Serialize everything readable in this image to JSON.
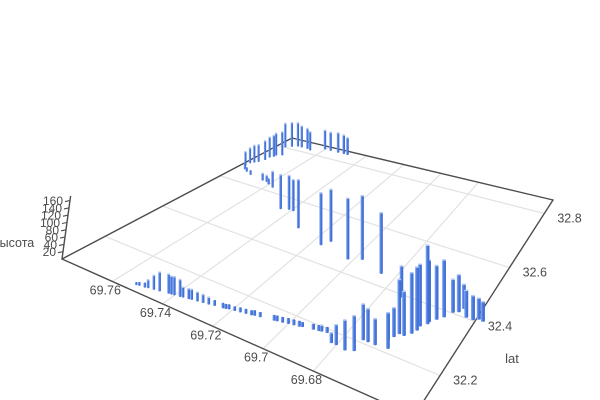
{
  "page": {
    "background": "#ffffff"
  },
  "chart_data": {
    "type": "bar",
    "subtype": "3d-vertical-bars",
    "title": "",
    "legend": "none",
    "grid": true,
    "axes": {
      "x": {
        "title": "",
        "tick_labels": [
          "69.76",
          "69.74",
          "69.72",
          "69.7",
          "69.68"
        ],
        "tick_values": [
          69.76,
          69.74,
          69.72,
          69.7,
          69.68
        ],
        "range": [
          69.64,
          69.78
        ]
      },
      "y": {
        "title": "lat",
        "tick_labels": [
          "32.2",
          "32.4",
          "32.6",
          "32.8"
        ],
        "tick_values": [
          32.2,
          32.4,
          32.6,
          32.8
        ],
        "range": [
          32.05,
          32.85
        ]
      },
      "z": {
        "title": "высота",
        "tick_labels": [
          "20",
          "40",
          "60",
          "80",
          "100",
          "120",
          "140",
          "160"
        ],
        "tick_values": [
          20,
          40,
          60,
          80,
          100,
          120,
          140,
          160
        ],
        "range": [
          0,
          170
        ]
      }
    },
    "colors": {
      "bar_main": "#4a7ae0",
      "bar_light": "#93b2f0",
      "bar_dark": "#3a67cc",
      "bar_cap": "#b7cbf4",
      "grid_line": "#e2e2e2",
      "axis_line": "#4d4d4d",
      "tick_text": "#4c4c4c"
    },
    "points": [
      [
        69.753,
        32.074,
        8
      ],
      [
        69.752,
        32.076,
        10
      ],
      [
        69.75,
        32.078,
        13
      ],
      [
        69.749,
        32.081,
        23
      ],
      [
        69.747,
        32.084,
        38
      ],
      [
        69.745,
        32.087,
        50
      ],
      [
        69.742,
        32.093,
        50
      ],
      [
        69.741,
        32.094,
        47
      ],
      [
        69.74,
        32.096,
        47
      ],
      [
        69.738,
        32.099,
        44
      ],
      [
        69.737,
        32.101,
        27
      ],
      [
        69.735,
        32.104,
        27
      ],
      [
        69.734,
        32.106,
        27
      ],
      [
        69.732,
        32.109,
        24
      ],
      [
        69.73,
        32.112,
        22
      ],
      [
        69.728,
        32.115,
        19
      ],
      [
        69.726,
        32.119,
        14
      ],
      [
        69.723,
        32.123,
        13
      ],
      [
        69.722,
        32.125,
        12
      ],
      [
        69.721,
        32.128,
        12
      ],
      [
        69.719,
        32.131,
        11
      ],
      [
        69.717,
        32.134,
        12
      ],
      [
        69.715,
        32.137,
        12
      ],
      [
        69.713,
        32.14,
        12
      ],
      [
        69.712,
        32.143,
        13
      ],
      [
        69.71,
        32.146,
        12
      ],
      [
        69.705,
        32.154,
        13
      ],
      [
        69.704,
        32.156,
        13
      ],
      [
        69.702,
        32.159,
        13
      ],
      [
        69.7,
        32.163,
        13
      ],
      [
        69.698,
        32.166,
        13
      ],
      [
        69.696,
        32.169,
        13
      ],
      [
        69.695,
        32.172,
        11
      ],
      [
        69.691,
        32.178,
        13
      ],
      [
        69.689,
        32.181,
        13
      ],
      [
        69.688,
        32.183,
        15
      ],
      [
        69.686,
        32.186,
        13
      ],
      [
        69.682,
        32.16,
        23
      ],
      [
        69.68,
        32.16,
        44
      ],
      [
        69.676,
        32.155,
        64
      ],
      [
        69.673,
        32.165,
        74
      ],
      [
        69.673,
        32.21,
        76
      ],
      [
        69.671,
        32.21,
        70
      ],
      [
        69.668,
        32.21,
        55
      ],
      [
        69.663,
        32.215,
        74
      ],
      [
        69.665,
        32.24,
        57
      ],
      [
        69.664,
        32.258,
        61
      ],
      [
        69.663,
        32.274,
        112
      ],
      [
        69.661,
        32.274,
        91
      ],
      [
        69.659,
        32.29,
        124
      ],
      [
        69.658,
        32.306,
        129
      ],
      [
        69.658,
        32.322,
        127
      ],
      [
        69.656,
        32.338,
        160
      ],
      [
        69.656,
        32.346,
        126
      ],
      [
        69.654,
        32.362,
        110
      ],
      [
        69.652,
        32.378,
        116
      ],
      [
        69.65,
        32.402,
        68
      ],
      [
        69.648,
        32.41,
        76
      ],
      [
        69.647,
        32.426,
        50
      ],
      [
        69.644,
        32.402,
        55
      ],
      [
        69.641,
        32.402,
        49
      ],
      [
        69.639,
        32.41,
        43
      ],
      [
        69.637,
        32.408,
        40
      ],
      [
        69.672,
        32.39,
        68
      ],
      [
        69.686,
        32.442,
        137
      ],
      [
        69.697,
        32.466,
        149
      ],
      [
        69.702,
        32.45,
        144
      ],
      [
        69.714,
        32.49,
        129
      ],
      [
        69.716,
        32.466,
        129
      ],
      [
        69.73,
        32.498,
        126
      ],
      [
        69.739,
        32.554,
        86
      ],
      [
        69.741,
        32.554,
        94
      ],
      [
        69.744,
        32.546,
        95
      ],
      [
        69.757,
        32.618,
        49
      ],
      [
        69.76,
        32.626,
        18
      ],
      [
        69.762,
        32.634,
        21
      ],
      [
        69.764,
        32.634,
        24
      ],
      [
        69.771,
        32.642,
        15
      ],
      [
        69.774,
        32.65,
        15
      ],
      [
        69.776,
        32.658,
        19
      ],
      [
        69.778,
        32.674,
        47
      ],
      [
        69.778,
        32.69,
        51
      ],
      [
        69.777,
        32.698,
        57
      ],
      [
        69.776,
        32.706,
        57
      ],
      [
        69.775,
        32.722,
        63
      ],
      [
        69.775,
        32.738,
        67
      ],
      [
        69.774,
        32.746,
        70
      ],
      [
        69.774,
        32.754,
        73
      ],
      [
        69.772,
        32.762,
        76
      ],
      [
        69.776,
        32.8,
        80
      ],
      [
        69.774,
        32.81,
        80
      ],
      [
        69.772,
        32.818,
        78
      ],
      [
        69.77,
        32.818,
        70
      ],
      [
        69.767,
        32.818,
        66
      ],
      [
        69.765,
        32.814,
        60
      ],
      [
        69.76,
        32.834,
        61
      ],
      [
        69.757,
        32.834,
        58
      ],
      [
        69.753,
        32.834,
        61
      ],
      [
        69.75,
        32.834,
        58
      ],
      [
        69.748,
        32.834,
        52
      ]
    ]
  }
}
